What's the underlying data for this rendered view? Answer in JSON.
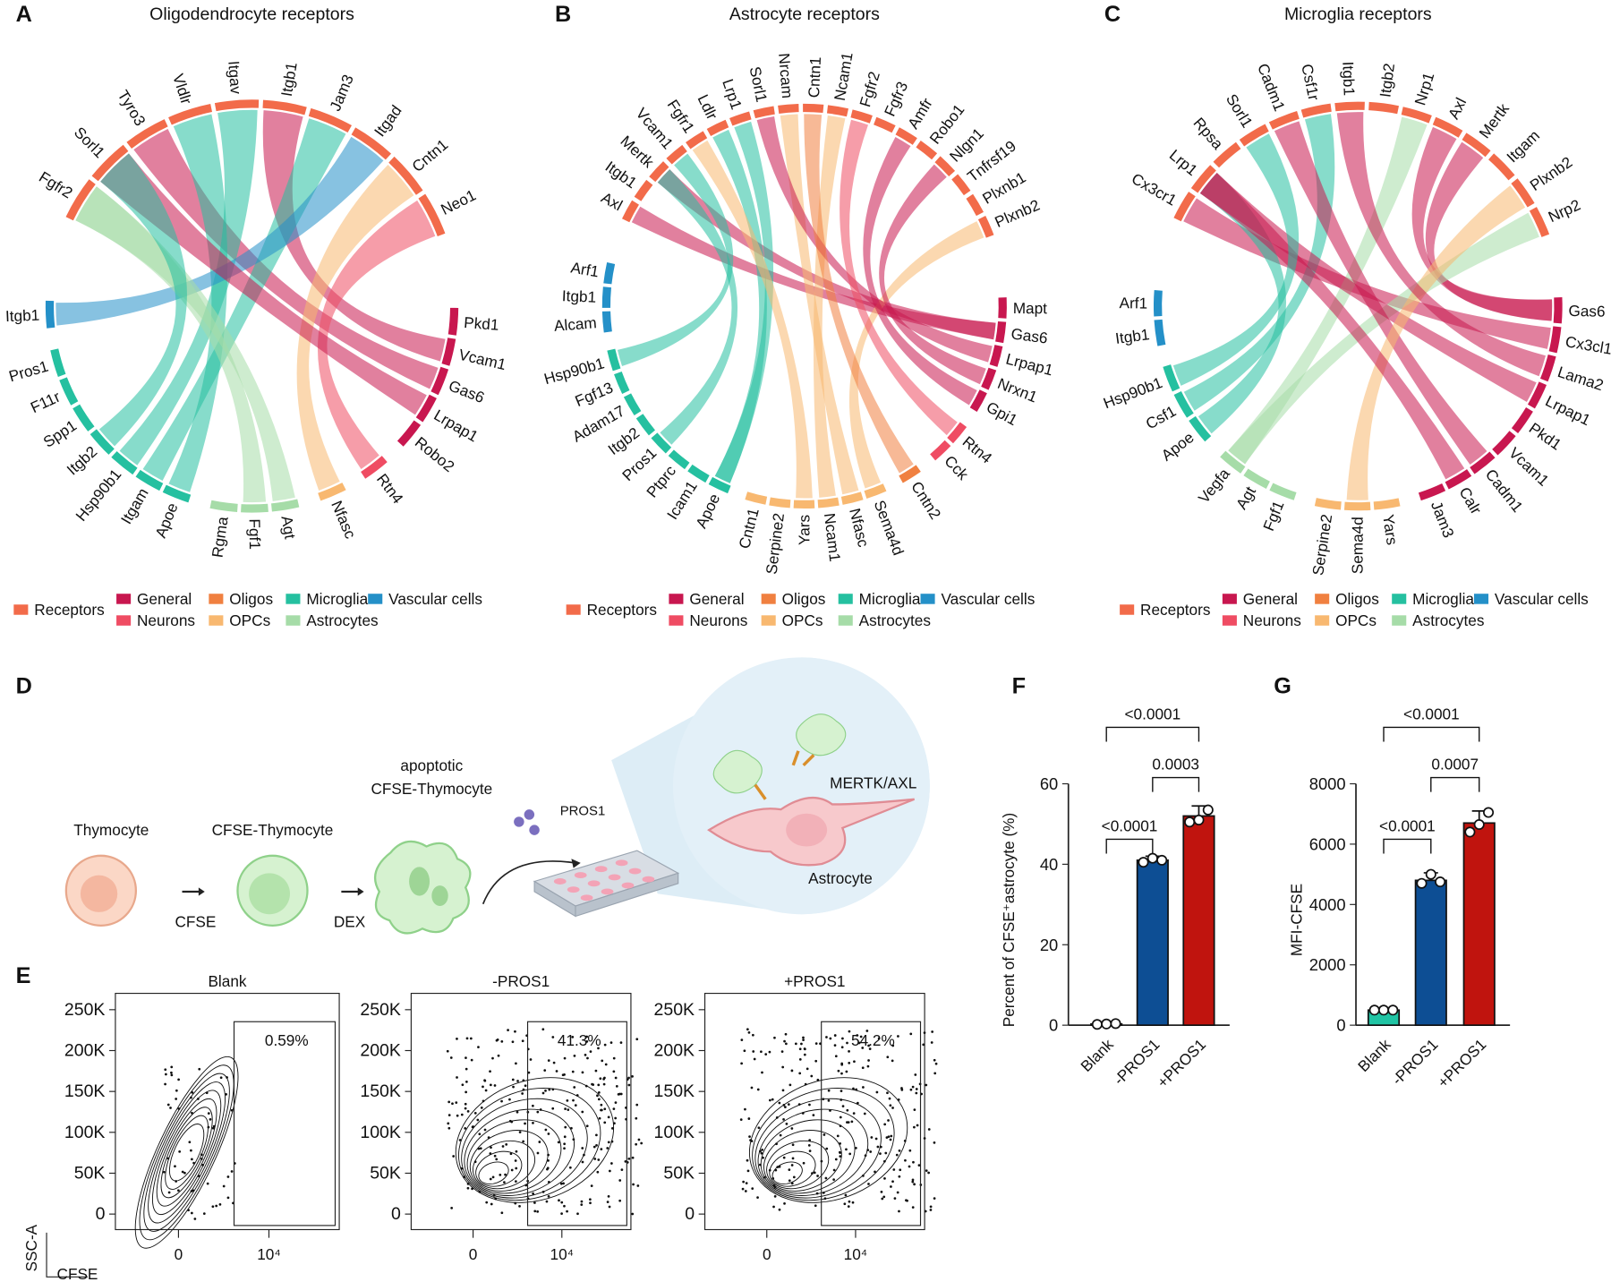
{
  "panel_labels": [
    "A",
    "B",
    "C",
    "D",
    "E",
    "F",
    "G"
  ],
  "schematic": {
    "cells": [
      "Thymocyte",
      "CFSE-Thymocyte"
    ],
    "apoptotic_cell": [
      "apoptotic",
      "CFSE-Thymocyte"
    ],
    "steps": [
      "CFSE",
      "DEX"
    ],
    "ligand": "PROS1",
    "receptor": "MERTK/AXL",
    "target": "Astrocyte"
  },
  "chart_data": [
    {
      "type": "chord",
      "title": "Oligodendrocyte receptors",
      "groups": [
        {
          "name": "Receptors",
          "color": "#f26b4a"
        },
        {
          "name": "General",
          "color": "#c8174f"
        },
        {
          "name": "Neurons",
          "color": "#ef4c63"
        },
        {
          "name": "Oligos",
          "color": "#f08040"
        },
        {
          "name": "OPCs",
          "color": "#f8b870"
        },
        {
          "name": "Microglia",
          "color": "#25c0a0"
        },
        {
          "name": "Astrocytes",
          "color": "#a6dca8"
        },
        {
          "name": "Vascular cells",
          "color": "#2490c8"
        }
      ],
      "receptors": [
        "Fgfr2",
        "Sorl1",
        "Tyro3",
        "Vldlr",
        "Itgav",
        "Itgb1",
        "Jam3",
        "Itgad",
        "Cntn1",
        "Neo1"
      ],
      "ligands": [
        {
          "name": "Pkd1",
          "group": 1
        },
        {
          "name": "Vcam1",
          "group": 1
        },
        {
          "name": "Gas6",
          "group": 1
        },
        {
          "name": "Lrpap1",
          "group": 1
        },
        {
          "name": "Robo2",
          "group": 1
        },
        {
          "name": "Rtn4",
          "group": 2
        },
        {
          "name": "Nfasc",
          "group": 4
        },
        {
          "name": "Agt",
          "group": 6
        },
        {
          "name": "Fgf1",
          "group": 6
        },
        {
          "name": "Rgma",
          "group": 6
        },
        {
          "name": "Apoe",
          "group": 5
        },
        {
          "name": "Itgam",
          "group": 5
        },
        {
          "name": "Hsp90b1",
          "group": 5
        },
        {
          "name": "Itgb2",
          "group": 5
        },
        {
          "name": "Spp1",
          "group": 5
        },
        {
          "name": "F11r",
          "group": 5
        },
        {
          "name": "Pros1",
          "group": 5
        },
        {
          "name": "Itgb1",
          "group": 7
        }
      ],
      "links": [
        [
          2,
          2
        ],
        [
          1,
          5
        ],
        [
          10,
          3
        ],
        [
          11,
          6
        ],
        [
          12,
          4
        ],
        [
          17,
          7
        ],
        [
          6,
          8
        ],
        [
          7,
          0
        ],
        [
          5,
          9
        ],
        [
          8,
          0
        ],
        [
          3,
          1
        ],
        [
          13,
          1
        ]
      ]
    },
    {
      "type": "chord",
      "title": "Astrocyte receptors",
      "groups": [
        {
          "name": "Receptors",
          "color": "#f26b4a"
        },
        {
          "name": "General",
          "color": "#c8174f"
        },
        {
          "name": "Neurons",
          "color": "#ef4c63"
        },
        {
          "name": "Oligos",
          "color": "#f08040"
        },
        {
          "name": "OPCs",
          "color": "#f8b870"
        },
        {
          "name": "Microglia",
          "color": "#25c0a0"
        },
        {
          "name": "Astrocytes",
          "color": "#a6dca8"
        },
        {
          "name": "Vascular cells",
          "color": "#2490c8"
        }
      ],
      "receptors": [
        "Axl",
        "Itgb1",
        "Mertk",
        "Vcam1",
        "Fgfr1",
        "Ldlr",
        "Lrp1",
        "Sorl1",
        "Nrcam",
        "Cntn1",
        "Ncam1",
        "Fgfr2",
        "Fgfr3",
        "Amfr",
        "Robo1",
        "Nlgn1",
        "Tnfrsf19",
        "Plxnb1",
        "Plxnb2"
      ],
      "ligands": [
        {
          "name": "Mapt",
          "group": 1
        },
        {
          "name": "Gas6",
          "group": 1
        },
        {
          "name": "Lrpap1",
          "group": 1
        },
        {
          "name": "Nrxn1",
          "group": 1
        },
        {
          "name": "Gpi1",
          "group": 1
        },
        {
          "name": "Rtn4",
          "group": 2
        },
        {
          "name": "Cck",
          "group": 2
        },
        {
          "name": "Cntn2",
          "group": 3
        },
        {
          "name": "Sema4d",
          "group": 4
        },
        {
          "name": "Nfasc",
          "group": 4
        },
        {
          "name": "Ncam1",
          "group": 4
        },
        {
          "name": "Yars",
          "group": 4
        },
        {
          "name": "Serpine2",
          "group": 4
        },
        {
          "name": "Cntn1",
          "group": 4
        },
        {
          "name": "Apoe",
          "group": 5
        },
        {
          "name": "Icam1",
          "group": 5
        },
        {
          "name": "Ptprc",
          "group": 5
        },
        {
          "name": "Pros1",
          "group": 5
        },
        {
          "name": "Itgb2",
          "group": 5
        },
        {
          "name": "Adam17",
          "group": 5
        },
        {
          "name": "Fgf13",
          "group": 5
        },
        {
          "name": "Hsp90b1",
          "group": 5
        },
        {
          "name": "Alcam",
          "group": 7
        },
        {
          "name": "Itgb1",
          "group": 7
        },
        {
          "name": "Arf1",
          "group": 7
        }
      ],
      "links": [
        [
          1,
          0
        ],
        [
          1,
          2
        ],
        [
          8,
          18
        ],
        [
          9,
          8
        ],
        [
          10,
          10
        ],
        [
          14,
          6
        ],
        [
          14,
          5
        ],
        [
          2,
          7
        ],
        [
          3,
          15
        ],
        [
          7,
          9
        ],
        [
          5,
          11
        ],
        [
          4,
          13
        ],
        [
          17,
          2
        ],
        [
          21,
          3
        ],
        [
          11,
          4
        ]
      ]
    },
    {
      "type": "chord",
      "title": "Microglia receptors",
      "groups": [
        {
          "name": "Receptors",
          "color": "#f26b4a"
        },
        {
          "name": "General",
          "color": "#c8174f"
        },
        {
          "name": "Neurons",
          "color": "#ef4c63"
        },
        {
          "name": "Oligos",
          "color": "#f08040"
        },
        {
          "name": "OPCs",
          "color": "#f8b870"
        },
        {
          "name": "Microglia",
          "color": "#25c0a0"
        },
        {
          "name": "Astrocytes",
          "color": "#a6dca8"
        },
        {
          "name": "Vascular cells",
          "color": "#2490c8"
        }
      ],
      "receptors": [
        "Cx3cr1",
        "Lrp1",
        "Rpsa",
        "Sorl1",
        "Cadm1",
        "Csf1r",
        "Itgb1",
        "Itgb2",
        "Nrp1",
        "Axl",
        "Mertk",
        "Itgam",
        "Plxnb2",
        "Nrp2"
      ],
      "ligands": [
        {
          "name": "Gas6",
          "group": 1
        },
        {
          "name": "Cx3cl1",
          "group": 1
        },
        {
          "name": "Lama2",
          "group": 1
        },
        {
          "name": "Lrpap1",
          "group": 1
        },
        {
          "name": "Pkd1",
          "group": 1
        },
        {
          "name": "Vcam1",
          "group": 1
        },
        {
          "name": "Cadm1",
          "group": 1
        },
        {
          "name": "Calr",
          "group": 1
        },
        {
          "name": "Jam3",
          "group": 1
        },
        {
          "name": "Yars",
          "group": 4
        },
        {
          "name": "Sema4d",
          "group": 4
        },
        {
          "name": "Serpine2",
          "group": 4
        },
        {
          "name": "Fgf1",
          "group": 6
        },
        {
          "name": "Agt",
          "group": 6
        },
        {
          "name": "Vegfa",
          "group": 6
        },
        {
          "name": "Apoe",
          "group": 5
        },
        {
          "name": "Csf1",
          "group": 5
        },
        {
          "name": "Hsp90b1",
          "group": 5
        },
        {
          "name": "Itgb1",
          "group": 7
        },
        {
          "name": "Arf1",
          "group": 7
        }
      ],
      "links": [
        [
          0,
          9
        ],
        [
          0,
          10
        ],
        [
          1,
          0
        ],
        [
          16,
          5
        ],
        [
          14,
          13
        ],
        [
          14,
          8
        ],
        [
          15,
          1
        ],
        [
          6,
          4
        ],
        [
          3,
          1
        ],
        [
          10,
          12
        ],
        [
          7,
          1
        ],
        [
          2,
          6
        ],
        [
          17,
          3
        ]
      ]
    },
    {
      "type": "contour",
      "title": "Blank",
      "values": [
        0.59
      ],
      "value_labels": [
        "0.59%"
      ],
      "xlabel": "CFSE",
      "ylabel": "SSC-A",
      "xscale": "logicle",
      "xlim": [
        -2800,
        262144
      ],
      "ylim": [
        -19000,
        270000
      ],
      "xticks": [
        0,
        {
          "value": 10000,
          "label": "10⁴"
        }
      ],
      "yticks": [
        0,
        {
          "value": 50000,
          "label": "50K"
        },
        {
          "value": 100000,
          "label": "100K"
        },
        {
          "value": 150000,
          "label": "150K"
        },
        {
          "value": 200000,
          "label": "200K"
        },
        {
          "value": 250000,
          "label": "250K"
        }
      ]
    },
    {
      "type": "contour",
      "title": "-PROS1",
      "values": [
        41.3
      ],
      "value_labels": [
        "41.3%"
      ],
      "xscale": "logicle",
      "xlim": [
        -2800,
        262144
      ],
      "ylim": [
        -19000,
        270000
      ],
      "xticks": [
        0,
        {
          "value": 10000,
          "label": "10⁴"
        }
      ],
      "yticks": [
        0,
        {
          "value": 50000,
          "label": "50K"
        },
        {
          "value": 100000,
          "label": "100K"
        },
        {
          "value": 150000,
          "label": "150K"
        },
        {
          "value": 200000,
          "label": "200K"
        },
        {
          "value": 250000,
          "label": "250K"
        }
      ]
    },
    {
      "type": "contour",
      "title": "+PROS1",
      "values": [
        54.2
      ],
      "value_labels": [
        "54.2%"
      ],
      "xscale": "logicle",
      "xlim": [
        -2800,
        262144
      ],
      "ylim": [
        -19000,
        270000
      ],
      "xticks": [
        0,
        {
          "value": 10000,
          "label": "10⁴"
        }
      ],
      "yticks": [
        0,
        {
          "value": 50000,
          "label": "50K"
        },
        {
          "value": 100000,
          "label": "100K"
        },
        {
          "value": 150000,
          "label": "150K"
        },
        {
          "value": 200000,
          "label": "200K"
        },
        {
          "value": 250000,
          "label": "250K"
        }
      ]
    },
    {
      "type": "bar",
      "ylabel": "Percent of CFSE⁺astrocyte (%)",
      "categories": [
        "Blank",
        "-PROS1",
        "+PROS1"
      ],
      "colors": [
        "#20c4a4",
        "#0d4e94",
        "#c0140e"
      ],
      "values": [
        0.3,
        41,
        52
      ],
      "errors": [
        0,
        1,
        2.5
      ],
      "points": [
        [
          0.2,
          0.3,
          0.4
        ],
        [
          40.5,
          41.5,
          41
        ],
        [
          50.5,
          51,
          53.5
        ]
      ],
      "ylim": [
        0,
        60
      ],
      "yticks": [
        0,
        20,
        40,
        60
      ],
      "comparisons": [
        {
          "pair": [
            0,
            1
          ],
          "label": "<0.0001"
        },
        {
          "pair": [
            1,
            2
          ],
          "label": "0.0003"
        },
        {
          "pair": [
            0,
            2
          ],
          "label": "<0.0001"
        }
      ]
    },
    {
      "type": "bar",
      "ylabel": "MFI-CFSE",
      "categories": [
        "Blank",
        "-PROS1",
        "+PROS1"
      ],
      "colors": [
        "#20c4a4",
        "#0d4e94",
        "#c0140e"
      ],
      "values": [
        500,
        4800,
        6700
      ],
      "errors": [
        0,
        250,
        400
      ],
      "points": [
        [
          500,
          500,
          500
        ],
        [
          4700,
          5000,
          4750
        ],
        [
          6400,
          6650,
          7050
        ]
      ],
      "ylim": [
        0,
        8000
      ],
      "yticks": [
        0,
        2000,
        4000,
        6000,
        8000
      ],
      "comparisons": [
        {
          "pair": [
            0,
            1
          ],
          "label": "<0.0001"
        },
        {
          "pair": [
            1,
            2
          ],
          "label": "0.0007"
        },
        {
          "pair": [
            0,
            2
          ],
          "label": "<0.0001"
        }
      ]
    }
  ]
}
